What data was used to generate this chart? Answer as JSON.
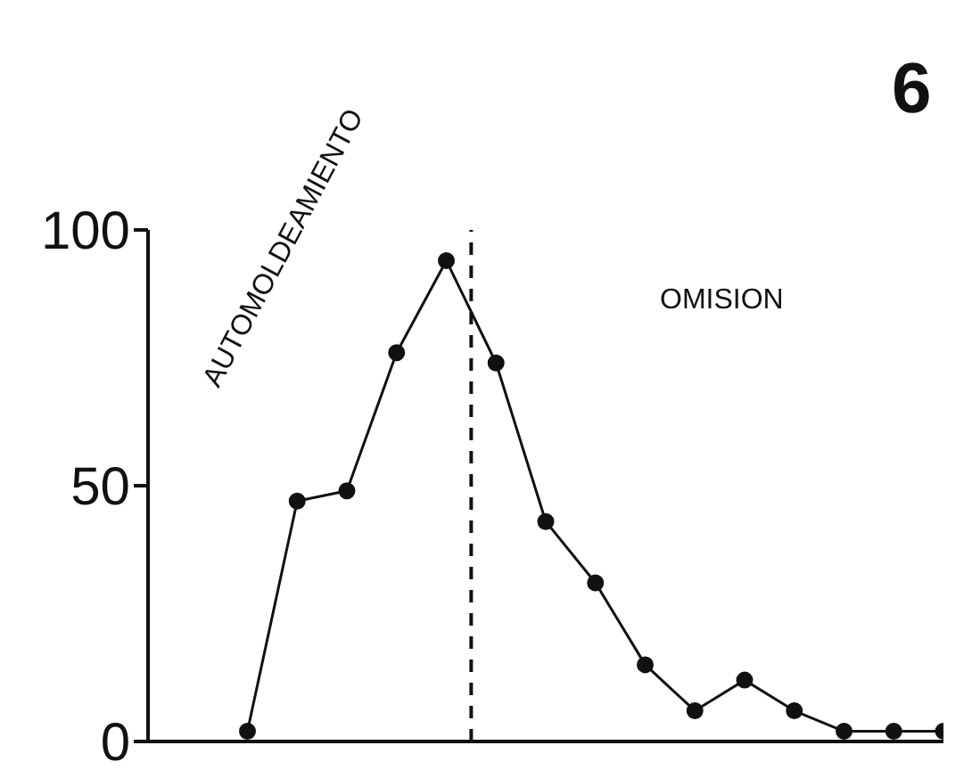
{
  "chart_data": {
    "type": "line",
    "categories": [
      null,
      null,
      null,
      null,
      null,
      null,
      null,
      null,
      null,
      null,
      null,
      null,
      null,
      null,
      null
    ],
    "values": [
      2,
      47,
      49,
      76,
      94,
      74,
      43,
      31,
      15,
      6,
      12,
      6,
      2,
      2,
      2
    ],
    "color": "#111111",
    "marker": "circle",
    "line_style": "solid",
    "ylim": [
      0,
      100
    ],
    "yticks": [
      0,
      50,
      100
    ],
    "tick_labels": "y",
    "grid": false,
    "legend": false,
    "annotations": [
      "6",
      "AUTOMOLDEAMIENTO",
      "OMISION"
    ]
  }
}
